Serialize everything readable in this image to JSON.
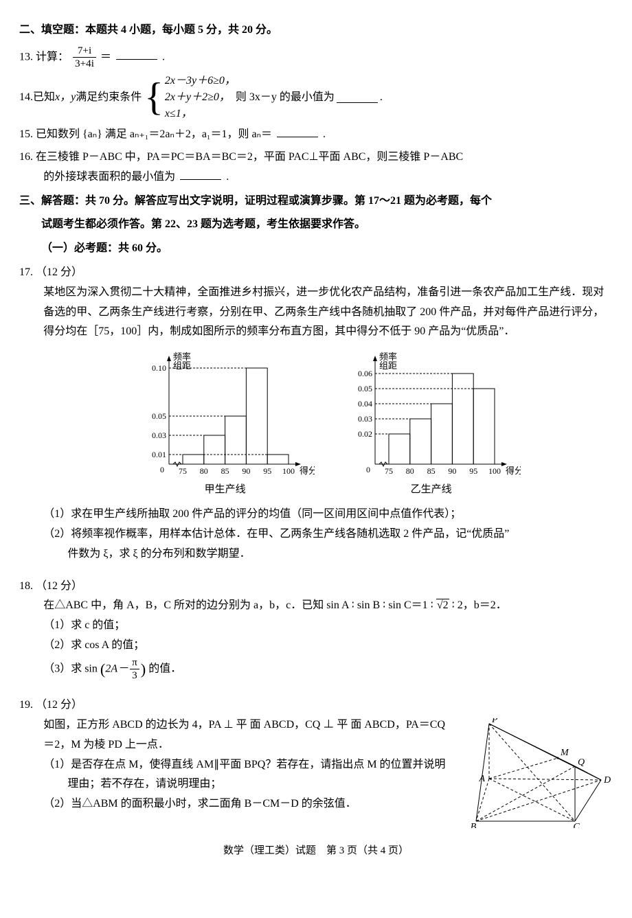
{
  "section2": {
    "title": "二、填空题：本题共 4 小题，每小题 5 分，共 20 分。",
    "q13": {
      "num": "13.",
      "pre": "计算：",
      "frac_num": "7+i",
      "frac_den": "3+4i",
      "post": "＝",
      "tail": "."
    },
    "q14": {
      "num": "14.",
      "pre": "已知 ",
      "vars": "x，y",
      "mid": " 满足约束条件",
      "c1": "2x－3y＋6≥0，",
      "c2": "2x＋y＋2≥0，",
      "c3": "x≤1，",
      "tail_pre": "则 3x－y 的最小值为",
      "tail_post": "."
    },
    "q15": {
      "num": "15.",
      "text_a": "已知数列 {aₙ} 满足 aₙ₊₁＝2aₙ＋2，a₁＝1，则 aₙ＝",
      "tail": "."
    },
    "q16": {
      "num": "16.",
      "line1": "在三棱锥 P－ABC 中，PA＝PC＝BA＝BC＝2，平面 PAC⊥平面 ABC，则三棱锥 P－ABC",
      "line2_pre": "的外接球表面积的最小值为",
      "line2_post": "."
    }
  },
  "section3": {
    "title1": "三、解答题：共 70 分。解答应写出文字说明，证明过程或演算步骤。第 17～21 题为必考题，每个",
    "title2": "试题考生都必须作答。第 22、23 题为选考题，考生依据要求作答。",
    "subtitle": "（一）必考题：共 60 分。"
  },
  "q17": {
    "num": "17.",
    "pts": "（12 分）",
    "p1": "某地区为深入贯彻二十大精神，全面推进乡村振兴，进一步优化农产品结构，准备引进一条农产品加工生产线．现对备选的甲、乙两条生产线进行考察，分别在甲、乙两条生产线中各随机抽取了 200 件产品，并对每件产品进行评分，得分均在［75，100］内，制成如图所示的频率分布直方图，其中得分不低于 90 产品为“优质品”．",
    "chart_y_label": "频率\n组距",
    "chart_x_label": "得分",
    "cap1": "甲生产线",
    "cap2": "乙生产线",
    "chart1": {
      "background": "#ffffff",
      "axis_color": "#000000",
      "x_ticks": [
        "75",
        "80",
        "85",
        "90",
        "95",
        "100"
      ],
      "y_ticks": [
        {
          "v": 0.01,
          "label": "0.01"
        },
        {
          "v": 0.03,
          "label": "0.03"
        },
        {
          "v": 0.05,
          "label": "0.05"
        },
        {
          "v": 0.1,
          "label": "0.10"
        }
      ],
      "bars": [
        0.01,
        0.03,
        0.05,
        0.1,
        0.01
      ],
      "ymax": 0.11,
      "line_width": 1,
      "dash": "3,2"
    },
    "chart2": {
      "background": "#ffffff",
      "axis_color": "#000000",
      "x_ticks": [
        "75",
        "80",
        "85",
        "90",
        "95",
        "100"
      ],
      "y_ticks": [
        {
          "v": 0.02,
          "label": "0.02"
        },
        {
          "v": 0.03,
          "label": "0.03"
        },
        {
          "v": 0.04,
          "label": "0.04"
        },
        {
          "v": 0.05,
          "label": "0.05"
        },
        {
          "v": 0.06,
          "label": "0.06"
        }
      ],
      "bars": [
        0.02,
        0.03,
        0.04,
        0.06,
        0.05
      ],
      "ymax": 0.07,
      "line_width": 1,
      "dash": "3,2"
    },
    "sub1": "（1）求在甲生产线所抽取 200 件产品的评分的均值（同一区间用区间中点值作代表）；",
    "sub2": "（2）将频率视作概率，用样本估计总体．在甲、乙两条生产线各随机选取 2 件产品，记“优质品”",
    "sub2b": "件数为 ξ，求 ξ 的分布列和数学期望．"
  },
  "q18": {
    "num": "18.",
    "pts": "（12 分）",
    "p1_a": "在△ABC 中，角 A，B，C 所对的边分别为 a，b，c．已知 sin A ∶ sin B ∶ sin C＝1 ∶ ",
    "sqrt2": "√2",
    "p1_b": " ∶ 2，b＝2．",
    "s1": "（1）求 c 的值；",
    "s2": "（2）求 cos A 的值；",
    "s3a": "（3）求 sin",
    "s3_inner_a": "2A－",
    "s3_frac_num": "π",
    "s3_frac_den": "3",
    "s3b": "的值．"
  },
  "q19": {
    "num": "19.",
    "pts": "（12 分）",
    "p1": "如图，正方形 ABCD 的边长为 4，PA ⊥ 平 面 ABCD，CQ ⊥ 平 面 ABCD，PA＝CQ＝2，M 为棱 PD 上一点．",
    "s1": "（1）是否存在点 M，使得直线 AM∥平面 BPQ？若存在，请指出点 M 的位置并说明理由；若不存在，请说明理由；",
    "s2": "（2）当△ABM 的面积最小时，求二面角 B－CM－D 的余弦值．",
    "geom": {
      "pts": {
        "A": [
          35,
          88
        ],
        "B": [
          16,
          150
        ],
        "C": [
          160,
          150
        ],
        "D": [
          198,
          90
        ],
        "P": [
          35,
          8
        ],
        "Q": [
          160,
          70
        ],
        "M": [
          135,
          58
        ]
      },
      "labels": {
        "A": "A",
        "B": "B",
        "C": "C",
        "D": "D",
        "P": "P",
        "Q": "Q",
        "M": "M"
      },
      "line_color": "#000000",
      "dash": "4,3"
    }
  },
  "footer": "数学（理工类）试题　第 3 页（共 4 页）"
}
